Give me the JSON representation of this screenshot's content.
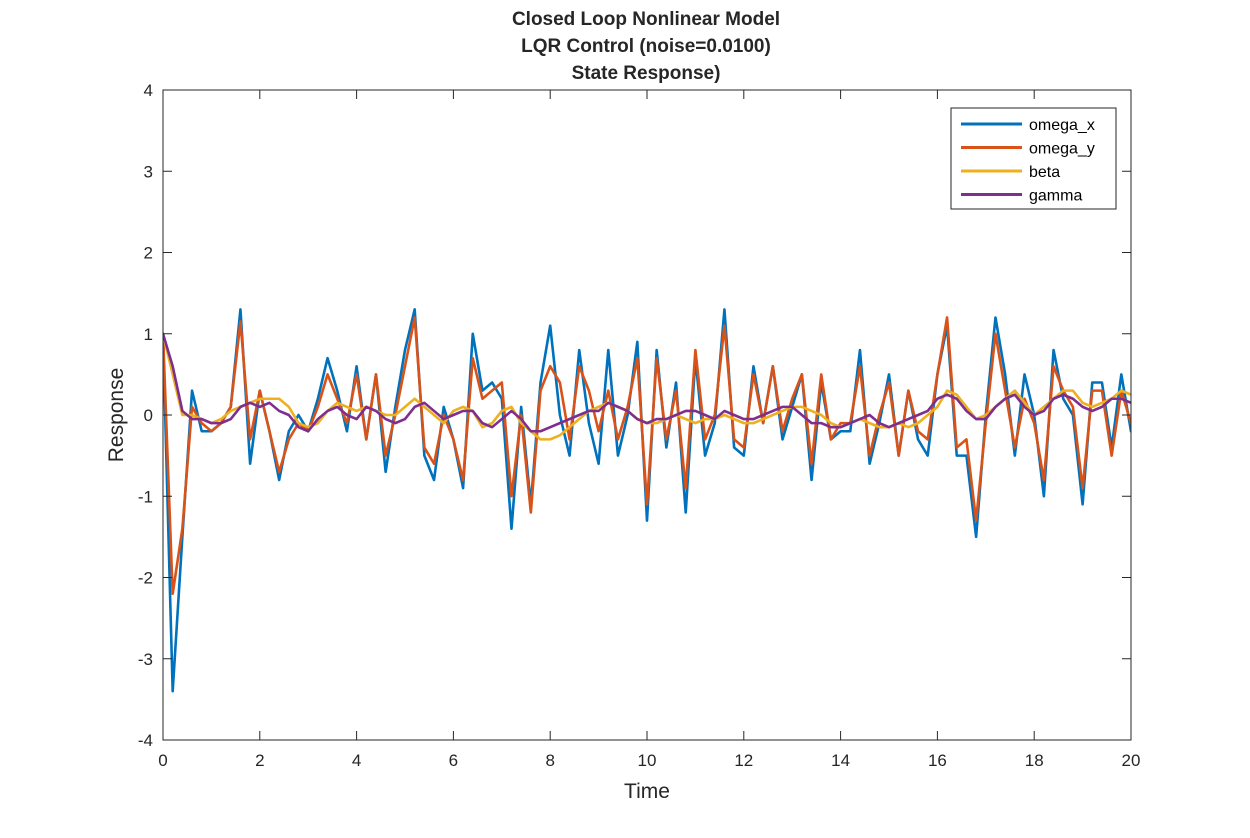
{
  "chart_data": {
    "type": "line",
    "title": [
      "Closed Loop Nonlinear Model",
      "LQR Control (noise=0.0100)",
      "State Response)"
    ],
    "xlabel": "Time",
    "ylabel": "Response",
    "xlim": [
      0,
      20
    ],
    "ylim": [
      -4,
      4
    ],
    "xticks": [
      0,
      2,
      4,
      6,
      8,
      10,
      12,
      14,
      16,
      18,
      20
    ],
    "yticks": [
      -4,
      -3,
      -2,
      -1,
      0,
      1,
      2,
      3,
      4
    ],
    "grid": false,
    "legend_position": "top-right",
    "x": [
      0,
      0.2,
      0.4,
      0.6,
      0.8,
      1.0,
      1.2,
      1.4,
      1.6,
      1.8,
      2.0,
      2.2,
      2.4,
      2.6,
      2.8,
      3.0,
      3.2,
      3.4,
      3.6,
      3.8,
      4.0,
      4.2,
      4.4,
      4.6,
      4.8,
      5.0,
      5.2,
      5.4,
      5.6,
      5.8,
      6.0,
      6.2,
      6.4,
      6.6,
      6.8,
      7.0,
      7.2,
      7.4,
      7.6,
      7.8,
      8.0,
      8.2,
      8.4,
      8.6,
      8.8,
      9.0,
      9.2,
      9.4,
      9.6,
      9.8,
      10.0,
      10.2,
      10.4,
      10.6,
      10.8,
      11.0,
      11.2,
      11.4,
      11.6,
      11.8,
      12.0,
      12.2,
      12.4,
      12.6,
      12.8,
      13.0,
      13.2,
      13.4,
      13.6,
      13.8,
      14.0,
      14.2,
      14.4,
      14.6,
      14.8,
      15.0,
      15.2,
      15.4,
      15.6,
      15.8,
      16.0,
      16.2,
      16.4,
      16.6,
      16.8,
      17.0,
      17.2,
      17.4,
      17.6,
      17.8,
      18.0,
      18.2,
      18.4,
      18.6,
      18.8,
      19.0,
      19.2,
      19.4,
      19.6,
      19.8,
      20.0
    ],
    "series": [
      {
        "name": "omega_x",
        "color": "#0072BD",
        "values": [
          1.0,
          -3.4,
          -1.5,
          0.3,
          -0.2,
          -0.2,
          -0.1,
          0.1,
          1.3,
          -0.6,
          0.3,
          -0.2,
          -0.8,
          -0.2,
          0.0,
          -0.2,
          0.2,
          0.7,
          0.3,
          -0.2,
          0.6,
          -0.3,
          0.5,
          -0.7,
          0.1,
          0.8,
          1.3,
          -0.5,
          -0.8,
          0.1,
          -0.3,
          -0.9,
          1.0,
          0.3,
          0.4,
          0.2,
          -1.4,
          0.1,
          -1.1,
          0.4,
          1.1,
          0.0,
          -0.5,
          0.8,
          -0.1,
          -0.6,
          0.8,
          -0.5,
          0.0,
          0.9,
          -1.3,
          0.8,
          -0.4,
          0.4,
          -1.2,
          0.7,
          -0.5,
          -0.1,
          1.3,
          -0.4,
          -0.5,
          0.6,
          -0.1,
          0.6,
          -0.3,
          0.1,
          0.5,
          -0.8,
          0.4,
          -0.3,
          -0.2,
          -0.2,
          0.8,
          -0.6,
          -0.1,
          0.5,
          -0.5,
          0.3,
          -0.3,
          -0.5,
          0.5,
          1.1,
          -0.5,
          -0.5,
          -1.5,
          0.0,
          1.2,
          0.5,
          -0.5,
          0.5,
          0.0,
          -1.0,
          0.8,
          0.2,
          0.0,
          -1.1,
          0.4,
          0.4,
          -0.4,
          0.5,
          -0.2
        ]
      },
      {
        "name": "omega_y",
        "color": "#D95319",
        "values": [
          1.0,
          -2.2,
          -1.4,
          0.1,
          -0.1,
          -0.2,
          -0.1,
          0.1,
          1.15,
          -0.3,
          0.3,
          -0.2,
          -0.7,
          -0.3,
          -0.1,
          -0.2,
          0.1,
          0.5,
          0.2,
          -0.1,
          0.5,
          -0.3,
          0.5,
          -0.5,
          0.0,
          0.6,
          1.2,
          -0.4,
          -0.6,
          0.0,
          -0.3,
          -0.8,
          0.7,
          0.2,
          0.3,
          0.4,
          -1.0,
          0.0,
          -1.2,
          0.3,
          0.6,
          0.4,
          -0.3,
          0.6,
          0.3,
          -0.2,
          0.3,
          -0.3,
          0.1,
          0.7,
          -1.1,
          0.7,
          -0.3,
          0.3,
          -0.9,
          0.8,
          -0.3,
          0.0,
          1.1,
          -0.3,
          -0.4,
          0.5,
          -0.1,
          0.6,
          -0.2,
          0.2,
          0.5,
          -0.6,
          0.5,
          -0.3,
          -0.1,
          -0.1,
          0.6,
          -0.5,
          0.0,
          0.4,
          -0.5,
          0.3,
          -0.2,
          -0.3,
          0.5,
          1.2,
          -0.4,
          -0.3,
          -1.3,
          -0.1,
          1.0,
          0.3,
          -0.4,
          0.2,
          -0.1,
          -0.8,
          0.6,
          0.3,
          0.1,
          -0.9,
          0.3,
          0.3,
          -0.5,
          0.3,
          -0.1
        ]
      },
      {
        "name": "beta",
        "color": "#EDB120",
        "values": [
          1.0,
          0.5,
          0.0,
          0.0,
          -0.05,
          -0.1,
          -0.05,
          0.05,
          0.1,
          0.15,
          0.2,
          0.2,
          0.2,
          0.1,
          -0.1,
          -0.15,
          -0.1,
          0.05,
          0.15,
          0.1,
          0.05,
          0.1,
          0.05,
          0.0,
          0.0,
          0.1,
          0.2,
          0.1,
          0.0,
          -0.1,
          0.05,
          0.1,
          0.05,
          -0.15,
          -0.1,
          0.05,
          0.1,
          -0.1,
          -0.2,
          -0.3,
          -0.3,
          -0.25,
          -0.15,
          -0.05,
          0.05,
          0.1,
          0.15,
          0.1,
          0.05,
          -0.05,
          -0.1,
          -0.1,
          -0.05,
          0.0,
          -0.05,
          -0.1,
          -0.05,
          -0.05,
          0.0,
          -0.05,
          -0.1,
          -0.1,
          -0.05,
          0.0,
          0.05,
          0.1,
          0.1,
          0.05,
          0.0,
          -0.1,
          -0.15,
          -0.1,
          -0.05,
          -0.1,
          -0.15,
          -0.15,
          -0.1,
          -0.15,
          -0.1,
          0.0,
          0.1,
          0.3,
          0.25,
          0.1,
          -0.05,
          0.0,
          0.1,
          0.2,
          0.3,
          0.15,
          0.0,
          0.1,
          0.2,
          0.3,
          0.3,
          0.15,
          0.1,
          0.15,
          0.2,
          0.3,
          0.25
        ]
      },
      {
        "name": "gamma",
        "color": "#7E2F8E",
        "values": [
          1.0,
          0.6,
          0.05,
          -0.05,
          -0.05,
          -0.1,
          -0.1,
          -0.05,
          0.1,
          0.15,
          0.1,
          0.15,
          0.05,
          0.0,
          -0.15,
          -0.2,
          -0.05,
          0.05,
          0.1,
          0.0,
          -0.05,
          0.1,
          0.05,
          -0.05,
          -0.1,
          -0.05,
          0.1,
          0.15,
          0.05,
          -0.05,
          0.0,
          0.05,
          0.05,
          -0.1,
          -0.15,
          -0.05,
          0.05,
          -0.05,
          -0.2,
          -0.2,
          -0.15,
          -0.1,
          -0.05,
          0.0,
          0.05,
          0.05,
          0.15,
          0.1,
          0.05,
          -0.05,
          -0.1,
          -0.05,
          -0.05,
          0.0,
          0.05,
          0.05,
          0.0,
          -0.05,
          0.05,
          0.0,
          -0.05,
          -0.05,
          0.0,
          0.05,
          0.1,
          0.1,
          0.0,
          -0.1,
          -0.1,
          -0.15,
          -0.15,
          -0.1,
          -0.05,
          0.0,
          -0.1,
          -0.15,
          -0.1,
          -0.05,
          0.0,
          0.05,
          0.2,
          0.25,
          0.2,
          0.05,
          -0.05,
          -0.05,
          0.1,
          0.2,
          0.25,
          0.1,
          0.0,
          0.05,
          0.2,
          0.25,
          0.2,
          0.1,
          0.05,
          0.1,
          0.2,
          0.2,
          0.15
        ]
      }
    ]
  }
}
